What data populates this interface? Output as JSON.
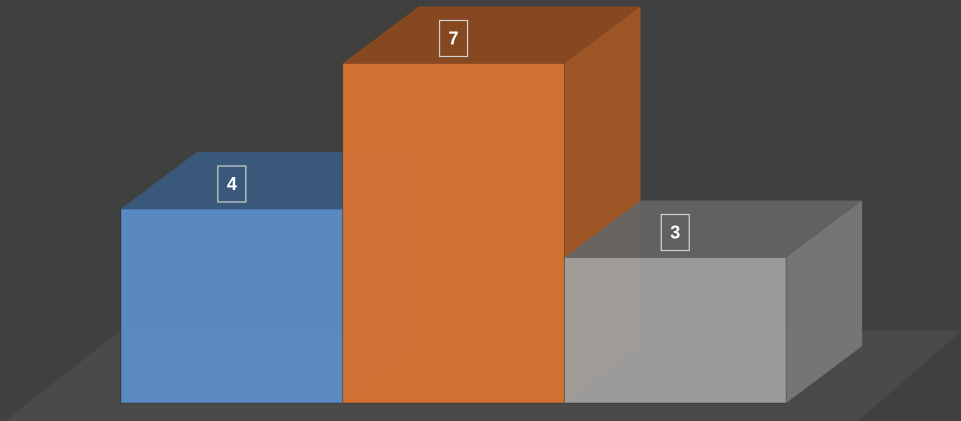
{
  "chart_data": {
    "type": "bar3d",
    "categories": [
      null,
      null,
      null
    ],
    "values": [
      4,
      7,
      3
    ],
    "colors": [
      "#5b8fca",
      "#dc7432",
      "#a0a0a0"
    ]
  }
}
